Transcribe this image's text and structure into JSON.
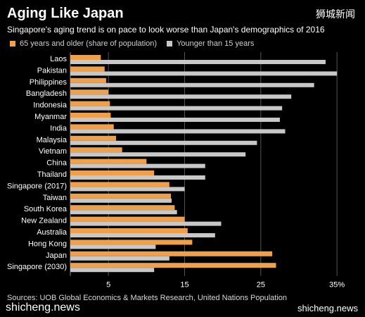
{
  "header": {
    "title": "Aging Like Japan",
    "watermark": "狮城新闻",
    "subtitle": "Singapore's aging trend is on pace to look worse than Japan's demographics of 2016"
  },
  "footer": {
    "source": "Sources: UOB Global Economics & Markets Research, United Nations Population",
    "watermark_left": "shicheng.news",
    "watermark_right": "shicheng.news"
  },
  "colors": {
    "older": "#f0a04b",
    "younger": "#c8c8c8",
    "grid": "#555555",
    "background": "#000000"
  },
  "chart_data": {
    "type": "bar",
    "orientation": "horizontal",
    "categories": [
      "Laos",
      "Pakistan",
      "Philippines",
      "Bangladesh",
      "Indonesia",
      "Myanmar",
      "India",
      "Malaysia",
      "Vietnam",
      "China",
      "Thailand",
      "Singapore (2017)",
      "Taiwan",
      "South Korea",
      "New Zealand",
      "Australia",
      "Hong Kong",
      "Japan",
      "Singapore (2030)"
    ],
    "series": [
      {
        "name": "65 years and older (share of population)",
        "color": "#f0a04b",
        "values": [
          4,
          4.5,
          4.7,
          5,
          5.2,
          5.3,
          5.7,
          6,
          6.8,
          10,
          11,
          13,
          13.2,
          13.7,
          15,
          15.4,
          16,
          26.5,
          27
        ]
      },
      {
        "name": "Younger than 15 years",
        "color": "#c8c8c8",
        "values": [
          33.5,
          35,
          32,
          29,
          27.8,
          27.5,
          28.2,
          24.5,
          23,
          17.7,
          17.7,
          15,
          13.3,
          14,
          19.8,
          19,
          11.2,
          13,
          11
        ]
      }
    ],
    "x_ticks": [
      "5",
      "15",
      "25",
      "35%"
    ],
    "x_tick_values": [
      5,
      15,
      25,
      35
    ],
    "xlim": [
      0,
      36
    ],
    "grid": true,
    "legend_placement": "top-left"
  }
}
